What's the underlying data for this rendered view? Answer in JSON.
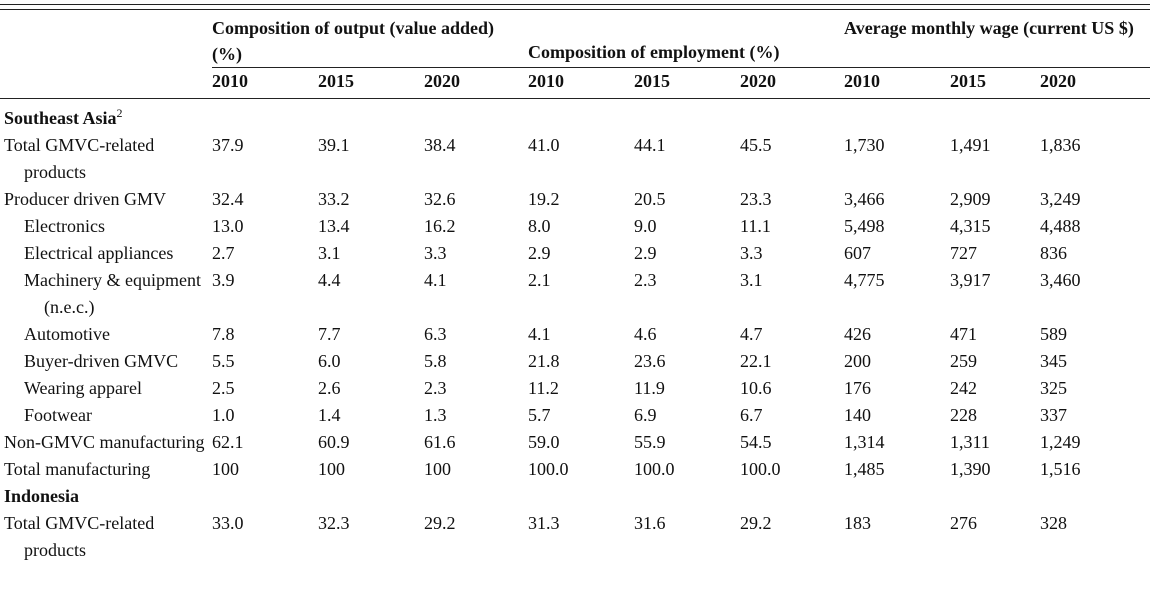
{
  "headers": {
    "output": "Composition of output (value added) (%)",
    "employment": "Composition of employment (%)",
    "wage": "Average monthly wage (current US $)",
    "years": [
      "2010",
      "2015",
      "2020",
      "2010",
      "2015",
      "2020",
      "2010",
      "2015",
      "2020"
    ]
  },
  "sections": {
    "southeast_asia": {
      "title": "Southeast Asia",
      "note": "2"
    },
    "indonesia": {
      "title": "Indonesia"
    }
  },
  "rows": {
    "sea_total_gmvc": {
      "label": "Total GMVC-related products",
      "values": [
        "37.9",
        "39.1",
        "38.4",
        "41.0",
        "44.1",
        "45.5",
        "1,730",
        "1,491",
        "1,836"
      ]
    },
    "sea_producer": {
      "label": "Producer driven GMV",
      "values": [
        "32.4",
        "33.2",
        "32.6",
        "19.2",
        "20.5",
        "23.3",
        "3,466",
        "2,909",
        "3,249"
      ]
    },
    "sea_electronics": {
      "label": "Electronics",
      "values": [
        "13.0",
        "13.4",
        "16.2",
        "8.0",
        "9.0",
        "11.1",
        "5,498",
        "4,315",
        "4,488"
      ]
    },
    "sea_elec_appl": {
      "label": "Electrical appliances",
      "values": [
        "2.7",
        "3.1",
        "3.3",
        "2.9",
        "2.9",
        "3.3",
        "607",
        "727",
        "836"
      ]
    },
    "sea_machinery": {
      "label": "Machinery & equipment (n.e.c.)",
      "values": [
        "3.9",
        "4.4",
        "4.1",
        "2.1",
        "2.3",
        "3.1",
        "4,775",
        "3,917",
        "3,460"
      ]
    },
    "sea_automotive": {
      "label": "Automotive",
      "values": [
        "7.8",
        "7.7",
        "6.3",
        "4.1",
        "4.6",
        "4.7",
        "426",
        "471",
        "589"
      ]
    },
    "sea_buyer": {
      "label": "Buyer-driven GMVC",
      "values": [
        "5.5",
        "6.0",
        "5.8",
        "21.8",
        "23.6",
        "22.1",
        "200",
        "259",
        "345"
      ]
    },
    "sea_apparel": {
      "label": "Wearing apparel",
      "values": [
        "2.5",
        "2.6",
        "2.3",
        "11.2",
        "11.9",
        "10.6",
        "176",
        "242",
        "325"
      ]
    },
    "sea_footwear": {
      "label": "Footwear",
      "values": [
        "1.0",
        "1.4",
        "1.3",
        "5.7",
        "6.9",
        "6.7",
        "140",
        "228",
        "337"
      ]
    },
    "sea_non_gmvc": {
      "label": "Non-GMVC manufacturing",
      "values": [
        "62.1",
        "60.9",
        "61.6",
        "59.0",
        "55.9",
        "54.5",
        "1,314",
        "1,311",
        "1,249"
      ]
    },
    "sea_total_mfg": {
      "label": "Total manufacturing",
      "values": [
        "100",
        "100",
        "100",
        "100.0",
        "100.0",
        "100.0",
        "1,485",
        "1,390",
        "1,516"
      ]
    },
    "idn_total_gmvc": {
      "label": "Total GMVC-related products",
      "values": [
        "33.0",
        "32.3",
        "29.2",
        "31.3",
        "31.6",
        "29.2",
        "183",
        "276",
        "328"
      ]
    }
  }
}
